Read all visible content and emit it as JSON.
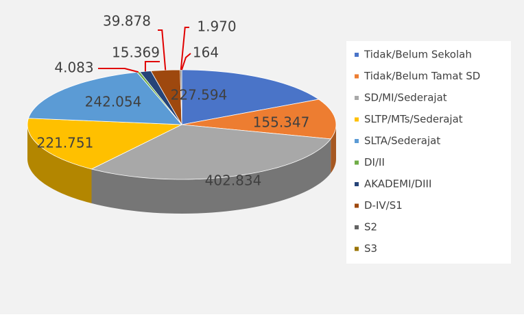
{
  "chart_data": {
    "type": "pie3d",
    "categories": [
      "Tidak/Belum Sekolah",
      "Tidak/Belum Tamat SD",
      "SD/MI/Sederajat",
      "SLTP/MTs/Sederajat",
      "SLTA/Sederajat",
      "DI/II",
      "AKADEMI/DIII",
      "D-IV/S1",
      "S2",
      "S3"
    ],
    "values": [
      227594,
      155347,
      402834,
      221751,
      242054,
      4083,
      15369,
      39878,
      1970,
      164
    ],
    "value_labels": [
      "227.594",
      "155.347",
      "402.834",
      "221.751",
      "242.054",
      "4.083",
      "15.369",
      "39.878",
      "1.970",
      "164"
    ],
    "colors": [
      "#4a74c8",
      "#ed7d31",
      "#a8a8a8",
      "#ffc000",
      "#5b9bd5",
      "#70ad47",
      "#264478",
      "#9e480e",
      "#636363",
      "#997300"
    ],
    "legend": "right"
  }
}
